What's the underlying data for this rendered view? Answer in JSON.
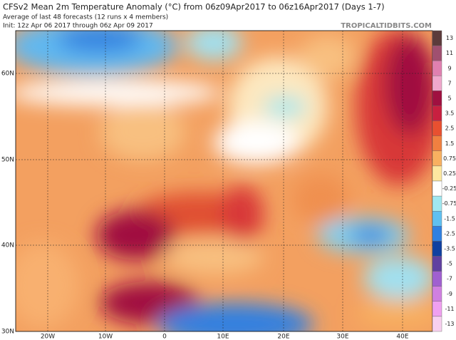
{
  "header": {
    "title": "CFSv2 Mean 2m Temperature Anomaly (°C) from 06z09Apr2017 to 06z16Apr2017 (Days 1-7)",
    "subtitle": "Average of last 48 forecasts (12 runs x 4 members)",
    "init": "Init: 12z Apr 06 2017 through 06z Apr 09 2017",
    "site": "TROPICALTIDBITS.COM"
  },
  "map": {
    "lat_labels": [
      "60N",
      "50N",
      "40N",
      "30N"
    ],
    "lon_labels": [
      "20W",
      "10W",
      "0",
      "10E",
      "20E",
      "30E",
      "40E"
    ]
  },
  "legend": {
    "labels": [
      "13",
      "11",
      "9",
      "7",
      "5",
      "3.5",
      "2.5",
      "1.5",
      "0.75",
      "0.25",
      "-0.25",
      "-0.75",
      "-1.5",
      "-2.5",
      "-3.5",
      "-5",
      "-7",
      "-9",
      "-11",
      "-13"
    ],
    "colors": [
      "#5c3b3b",
      "#a05070",
      "#e080b0",
      "#f0a8cc",
      "#a01040",
      "#c82040",
      "#e85030",
      "#f08040",
      "#f8b060",
      "#fde8a0",
      "#ffffff",
      "#a0e8f0",
      "#60c0f0",
      "#3080e0",
      "#1040a0",
      "#6040a0",
      "#a060d0",
      "#d080e0",
      "#f0a0f0",
      "#f8d0f0"
    ]
  }
}
